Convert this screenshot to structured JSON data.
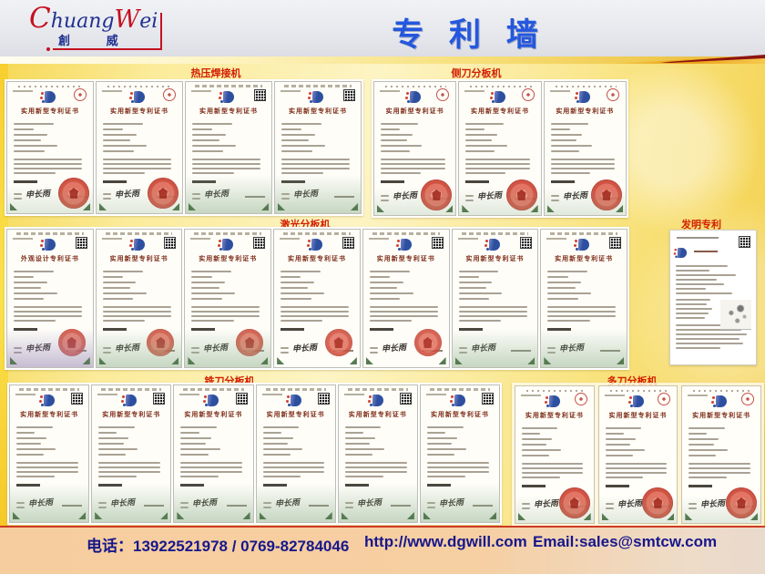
{
  "header": {
    "logo": {
      "en_parts": [
        "C",
        "huang",
        "W",
        "ei"
      ],
      "cn": "創 威"
    },
    "title": "专 利 墙"
  },
  "sections": [
    {
      "label": "热压焊接机",
      "certs": [
        "old",
        "old",
        "new-green",
        "new-green"
      ]
    },
    {
      "label": "侧刀分板机",
      "certs": [
        "old",
        "old",
        "old"
      ]
    },
    {
      "label": "激光分板机",
      "certs": [
        "design",
        "new-green-stamp",
        "new-green-stamp",
        "new-white-stamp",
        "new-white-stamp",
        "new-green",
        "new-green"
      ]
    },
    {
      "label": "发明专利",
      "certs": [
        "invention"
      ]
    },
    {
      "label": "铣刀分板机",
      "certs": [
        "new-green",
        "new-green",
        "new-green",
        "new-green",
        "new-green",
        "new-green"
      ]
    },
    {
      "label": "多刀分板机",
      "certs": [
        "old",
        "old",
        "old"
      ]
    }
  ],
  "certificate": {
    "utility_title": "实用新型专利证书",
    "design_title": "外观设计专利证书",
    "signature": "申长雨"
  },
  "footer": {
    "phone": "电话：13922521978 / 0769-82784046",
    "website": "http://www.dgwill.com",
    "email": "Email:sales@smtcw.com"
  },
  "colors": {
    "title_blue": "#2457de",
    "section_label_red": "#d21f00",
    "footer_navy": "#17178c",
    "logo_red": "#c41220",
    "logo_navy": "#203090",
    "wall_yellow": "#f9e482"
  }
}
